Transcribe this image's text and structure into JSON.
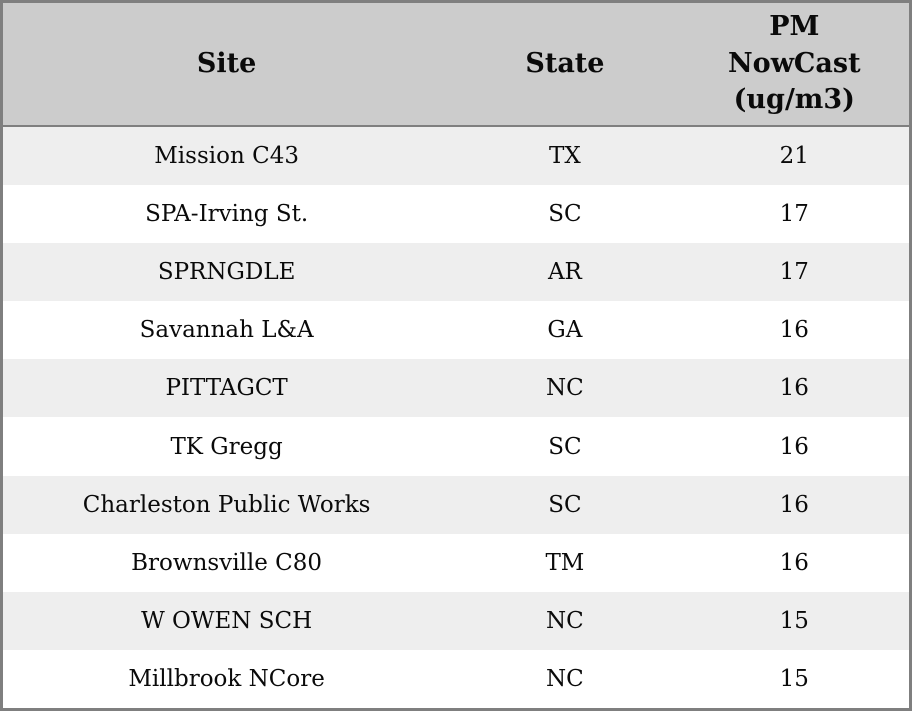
{
  "table": {
    "columns": [
      {
        "label": "Site"
      },
      {
        "label": "State"
      },
      {
        "label": "PM NowCast (ug/m3)",
        "lines": [
          "PM",
          "NowCast",
          "(ug/m3)"
        ]
      }
    ],
    "rows": [
      {
        "site": "Mission C43",
        "state": "TX",
        "value": "21"
      },
      {
        "site": "SPA-Irving St.",
        "state": "SC",
        "value": "17"
      },
      {
        "site": "SPRNGDLE",
        "state": "AR",
        "value": "17"
      },
      {
        "site": "Savannah L&A",
        "state": "GA",
        "value": "16"
      },
      {
        "site": "PITTAGCT",
        "state": "NC",
        "value": "16"
      },
      {
        "site": "TK Gregg",
        "state": "SC",
        "value": "16"
      },
      {
        "site": "Charleston Public Works",
        "state": "SC",
        "value": "16"
      },
      {
        "site": "Brownsville C80",
        "state": "TM",
        "value": "16"
      },
      {
        "site": "W OWEN SCH",
        "state": "NC",
        "value": "15"
      },
      {
        "site": "Millbrook NCore",
        "state": "NC",
        "value": "15"
      }
    ]
  },
  "colors": {
    "header_bg": "#cccccc",
    "row_alt_bg": "#eeeeee",
    "row_bg": "#ffffff",
    "border": "#7f7f7f",
    "text": "#0a0a0a"
  }
}
